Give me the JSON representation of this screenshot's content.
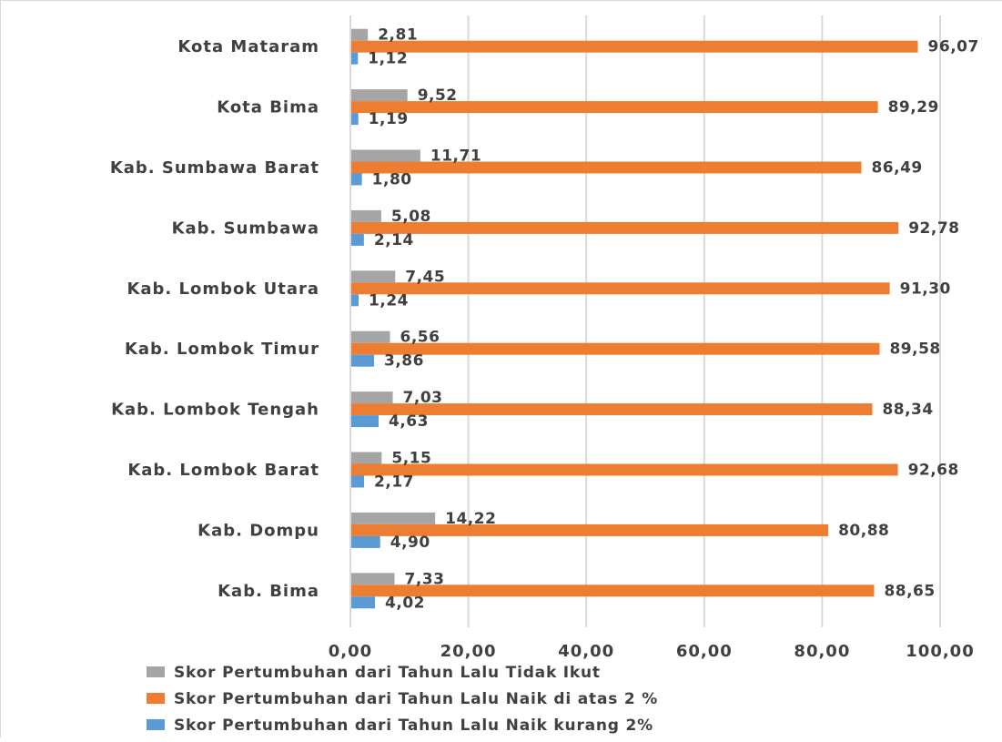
{
  "chart_data": {
    "type": "bar",
    "orientation": "horizontal",
    "categories": [
      "Kota Mataram",
      "Kota Bima",
      "Kab. Sumbawa Barat",
      "Kab. Sumbawa",
      "Kab. Lombok Utara",
      "Kab. Lombok Timur",
      "Kab. Lombok Tengah",
      "Kab. Lombok Barat",
      "Kab. Dompu",
      "Kab. Bima"
    ],
    "series": [
      {
        "name": "Skor Pertumbuhan dari Tahun Lalu Tidak Ikut",
        "color": "#a5a5a5",
        "values": [
          2.81,
          9.52,
          11.71,
          5.08,
          7.45,
          6.56,
          7.03,
          5.15,
          14.22,
          7.33
        ],
        "labels": [
          "2,81",
          "9,52",
          "11,71",
          "5,08",
          "7,45",
          "6,56",
          "7,03",
          "5,15",
          "14,22",
          "7,33"
        ]
      },
      {
        "name": "Skor Pertumbuhan dari Tahun Lalu Naik di atas 2 %",
        "color": "#ed7d31",
        "values": [
          96.07,
          89.29,
          86.49,
          92.78,
          91.3,
          89.58,
          88.34,
          92.68,
          80.88,
          88.65
        ],
        "labels": [
          "96,07",
          "89,29",
          "86,49",
          "92,78",
          "91,30",
          "89,58",
          "88,34",
          "92,68",
          "80,88",
          "88,65"
        ]
      },
      {
        "name": "Skor Pertumbuhan dari Tahun Lalu Naik kurang 2%",
        "color": "#5b9bd5",
        "values": [
          1.12,
          1.19,
          1.8,
          2.14,
          1.24,
          3.86,
          4.63,
          2.17,
          4.9,
          4.02
        ],
        "labels": [
          "1,12",
          "1,19",
          "1,80",
          "2,14",
          "1,24",
          "3,86",
          "4,63",
          "2,17",
          "4,90",
          "4,02"
        ]
      }
    ],
    "x_ticks": [
      "0,00",
      "20,00",
      "40,00",
      "60,00",
      "80,00",
      "100,00"
    ],
    "xlim": [
      0,
      100
    ],
    "grid": "vertical",
    "legend": "bottom",
    "gridline_color": "#d9d9d9"
  }
}
